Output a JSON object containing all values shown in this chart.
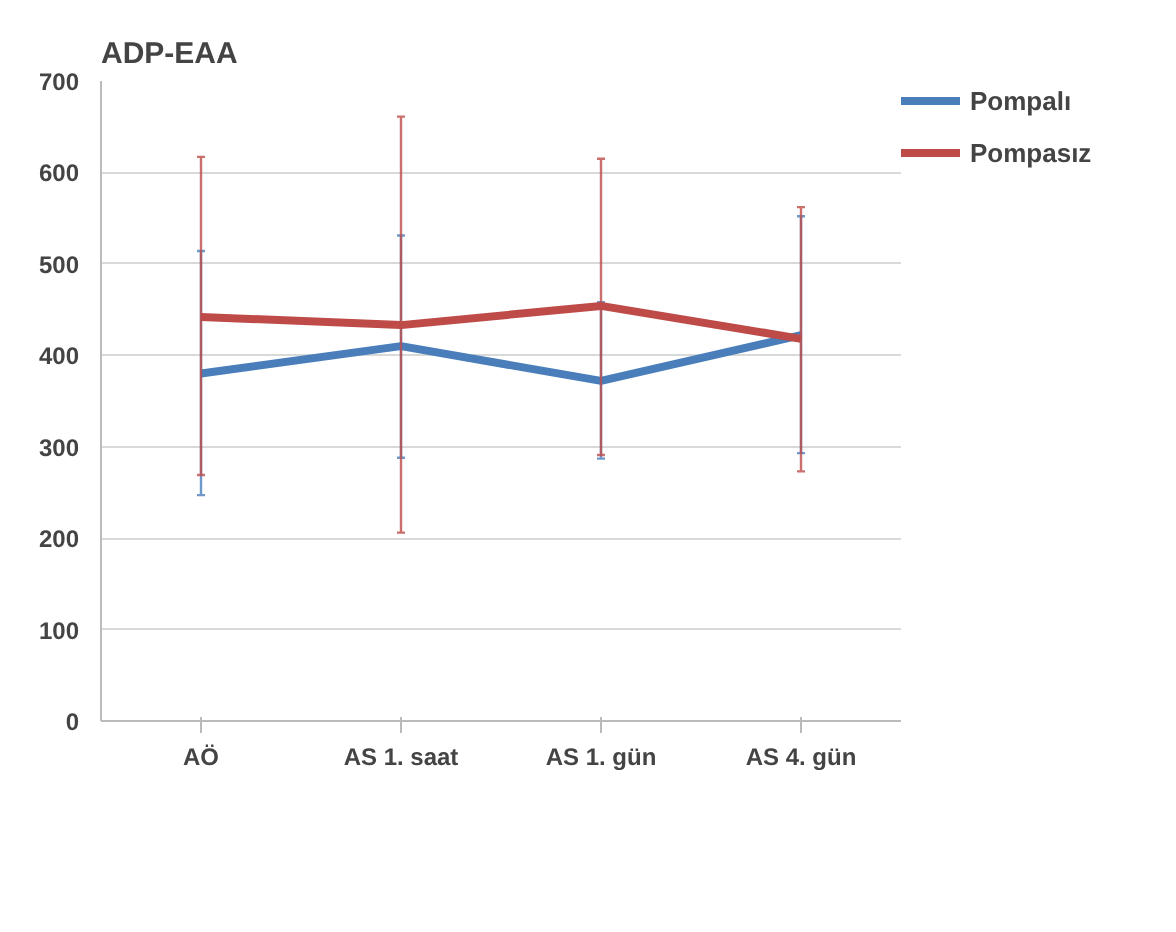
{
  "chart_data": {
    "type": "line",
    "title": "ADP-EAA",
    "categories": [
      "AÖ",
      "AS 1. saat",
      "AS 1. gün",
      "AS 4. gün"
    ],
    "series": [
      {
        "name": "Pompalı",
        "color": "#4a7ebb",
        "values": [
          380,
          410,
          372,
          422
        ],
        "errors": [
          [
            247,
            514
          ],
          [
            288,
            531
          ],
          [
            287,
            458
          ],
          [
            293,
            552
          ]
        ]
      },
      {
        "name": "Pompasız",
        "color": "#be4b48",
        "values": [
          442,
          433,
          454,
          418
        ],
        "errors": [
          [
            269,
            617
          ],
          [
            206,
            661
          ],
          [
            291,
            615
          ],
          [
            273,
            562
          ]
        ]
      }
    ],
    "ylim": [
      0,
      700
    ],
    "yticks": [
      0,
      100,
      200,
      300,
      400,
      500,
      600,
      700
    ],
    "grid": "y",
    "legend": "top right",
    "marker": "none",
    "line_style": "solid"
  }
}
